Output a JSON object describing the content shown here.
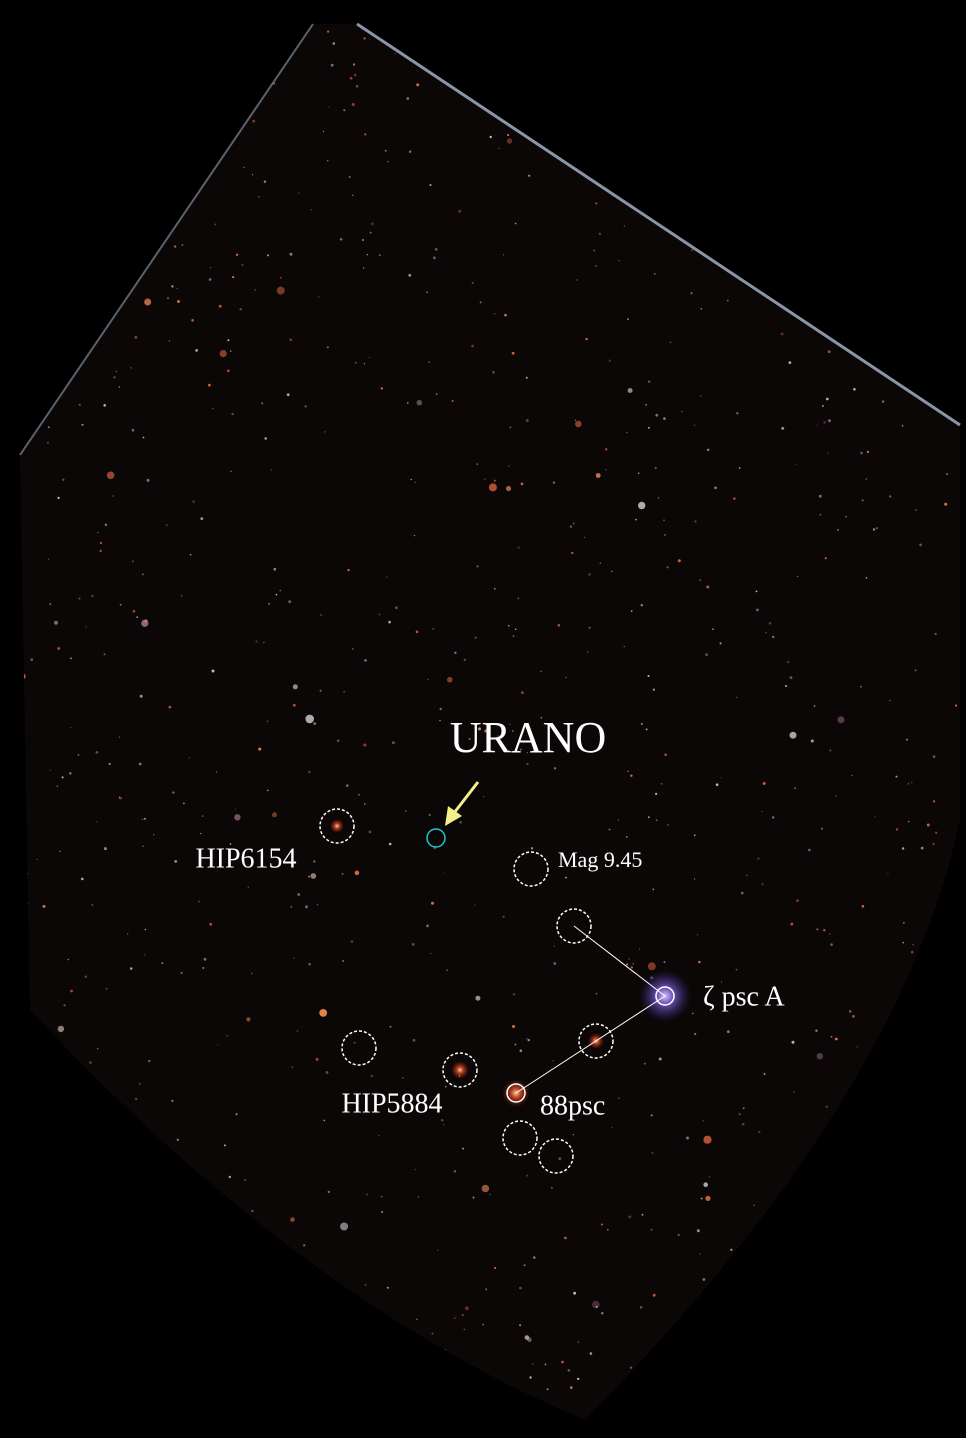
{
  "labels": {
    "target": "URANO",
    "hip6154": "HIP6154",
    "mag": "Mag 9.45",
    "zeta": "ζ psc A",
    "hip5884": "HIP5884",
    "psc88": "88psc"
  }
}
